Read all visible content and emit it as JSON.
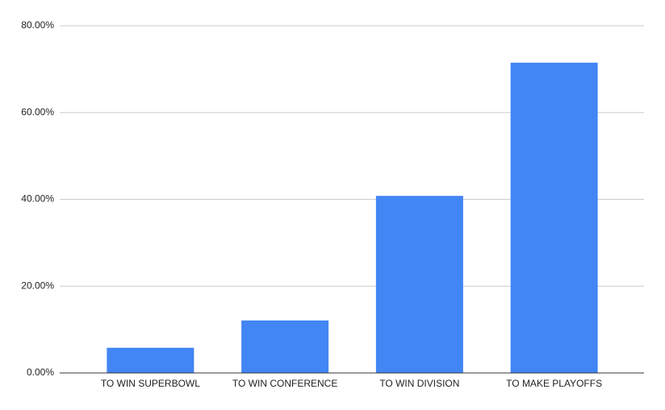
{
  "chart_data": {
    "type": "bar",
    "categories": [
      "TO WIN SUPERBOWL",
      "TO WIN CONFERENCE",
      "TO WIN DIVISION",
      "TO MAKE PLAYOFFS"
    ],
    "values": [
      5.8,
      12.1,
      40.8,
      71.5
    ],
    "color": "#4285f4",
    "ylim": [
      0,
      80
    ],
    "yticks": [
      {
        "value": 0,
        "label": "0.00%"
      },
      {
        "value": 20,
        "label": "20.00%"
      },
      {
        "value": 40,
        "label": "40.00%"
      },
      {
        "value": 60,
        "label": "60.00%"
      },
      {
        "value": 80,
        "label": "80.00%"
      }
    ],
    "grid": true
  }
}
